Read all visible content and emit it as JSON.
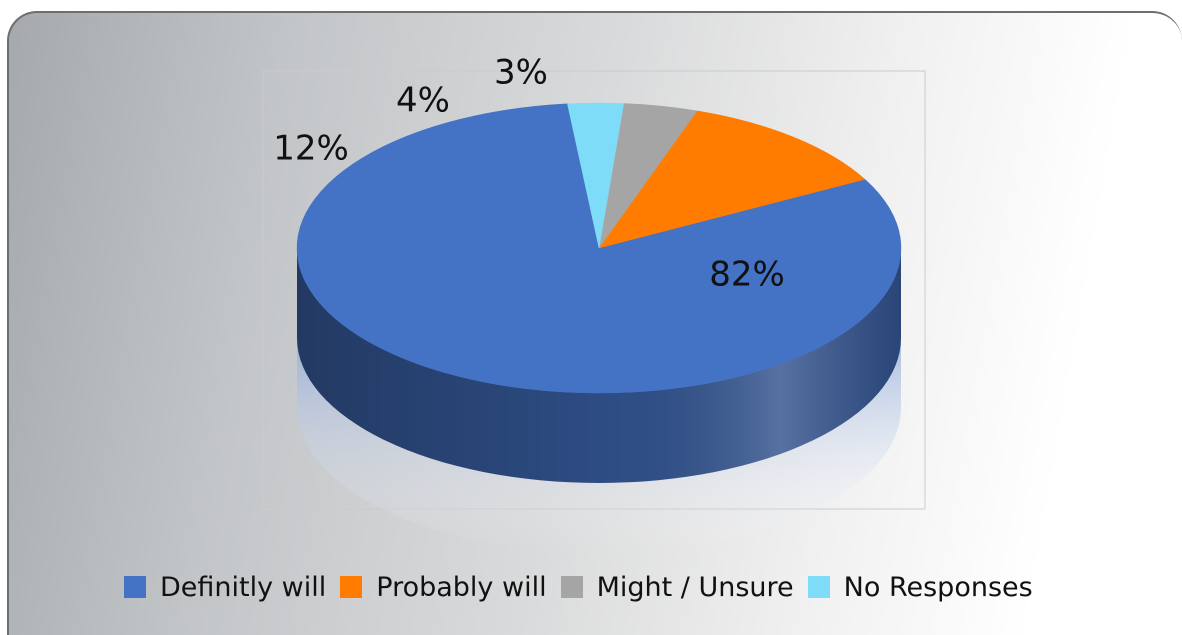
{
  "chart_data": {
    "type": "pie",
    "style": "3d",
    "title": "",
    "categories": [
      "Definitly will",
      "Probably will",
      "Might / Unsure",
      "No Responses"
    ],
    "values": [
      82,
      12,
      4,
      3
    ],
    "labels": [
      "82%",
      "12%",
      "4%",
      "3%"
    ],
    "colors": [
      "#4472c4",
      "#ff7c00",
      "#a5a5a5",
      "#7fdcf8"
    ],
    "legend_position": "bottom"
  }
}
